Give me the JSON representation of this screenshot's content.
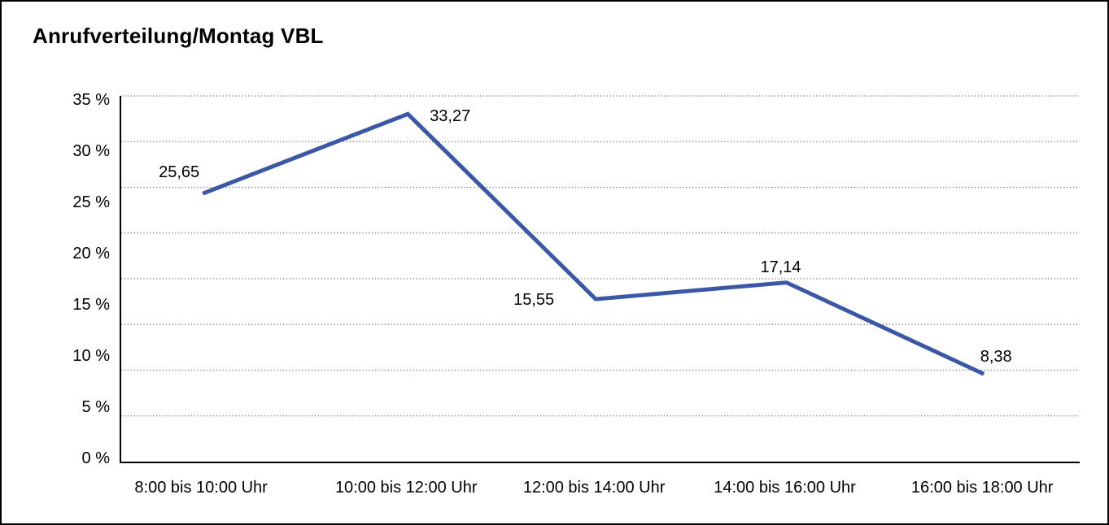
{
  "chart_data": {
    "type": "line",
    "title": "Anrufverteilung/Montag VBL",
    "categories": [
      "8:00 bis 10:00 Uhr",
      "10:00 bis 12:00 Uhr",
      "12:00 bis 14:00 Uhr",
      "14:00 bis 16:00 Uhr",
      "16:00 bis 18:00 Uhr"
    ],
    "values": [
      25.65,
      33.27,
      15.55,
      17.14,
      8.38
    ],
    "point_labels": [
      "25,65",
      "33,27",
      "15,55",
      "17,14",
      "8,38"
    ],
    "y_ticks": [
      "35 %",
      "30 %",
      "25 %",
      "20 %",
      "15 %",
      "10 %",
      "5 %",
      "0 %"
    ],
    "ylim": [
      0,
      35
    ],
    "xlabel": "",
    "ylabel": "",
    "legend_position": "none",
    "grid": "horizontal-dotted",
    "colors": {
      "line": "#3B58A7",
      "gridline": "#787878",
      "axis": "#000000",
      "text": "#000000",
      "background": "#ffffff"
    },
    "line_width": 5
  }
}
